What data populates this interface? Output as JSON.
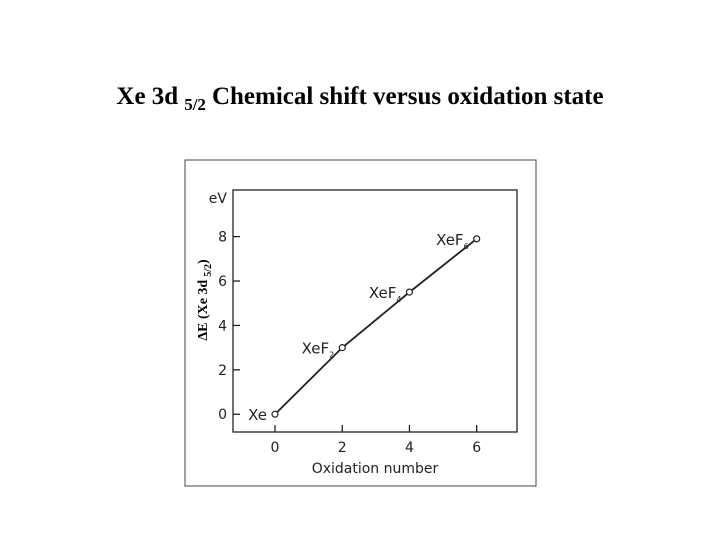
{
  "chart_data": {
    "type": "line",
    "title": "Xe 3d",
    "title_sub": "5/2",
    "title_rest": "Chemical shift versus oxidation state",
    "y_label": "ΔE (Xe 3d",
    "y_label_sub": "5/2",
    "y_label_close": ")",
    "y_unit": "eV",
    "x_label": "Oxidation number",
    "x": [
      0,
      2,
      4,
      6
    ],
    "series": [
      {
        "color": "#222222",
        "values": [
          0,
          3,
          5.5,
          7.9
        ]
      }
    ],
    "point_labels": [
      {
        "main": "Xe"
      },
      {
        "main": "XeF",
        "sub": "2"
      },
      {
        "main": "XeF",
        "sub": "4"
      },
      {
        "main": "XeF",
        "sub": "6"
      }
    ],
    "xlim": [
      -1.25,
      7.2
    ],
    "ylim": [
      -0.8,
      10.1
    ],
    "xticks": [
      0,
      2,
      4,
      6
    ],
    "yticks": [
      0,
      2,
      4,
      6,
      8
    ]
  }
}
